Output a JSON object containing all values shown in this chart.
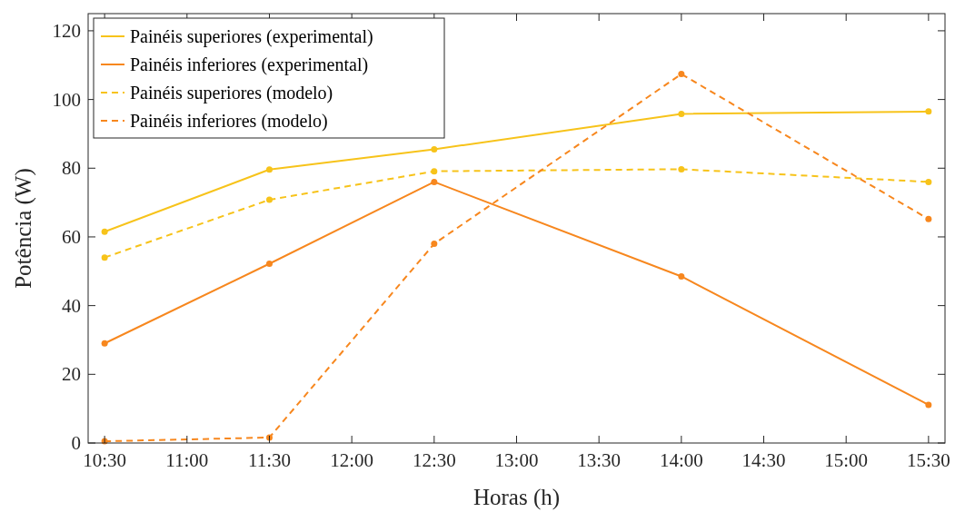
{
  "chart_data": {
    "type": "line",
    "xlabel": "Horas (h)",
    "ylabel": "Potência (W)",
    "x": [
      10.5,
      11.5,
      12.5,
      14,
      15.5
    ],
    "xlim": [
      10.4,
      15.6
    ],
    "xticks": [
      {
        "value": 10.5,
        "label": "10:30"
      },
      {
        "value": 11,
        "label": "11:00"
      },
      {
        "value": 11.5,
        "label": "11:30"
      },
      {
        "value": 12,
        "label": "12:00"
      },
      {
        "value": 12.5,
        "label": "12:30"
      },
      {
        "value": 13,
        "label": "13:00"
      },
      {
        "value": 13.5,
        "label": "13:30"
      },
      {
        "value": 14,
        "label": "14:00"
      },
      {
        "value": 14.5,
        "label": "14:30"
      },
      {
        "value": 15,
        "label": "15:00"
      },
      {
        "value": 15.5,
        "label": "15:30"
      }
    ],
    "ylim": [
      0,
      125
    ],
    "yticks": [
      0,
      20,
      40,
      60,
      80,
      100,
      120
    ],
    "grid": false,
    "legend": "top left",
    "marker": "circle",
    "series": [
      {
        "name": "Painéis superiores (experimental)",
        "color": "#f7c31a",
        "line_style": "solid",
        "values": [
          61.5,
          79.6,
          85.5,
          95.8,
          96.5
        ]
      },
      {
        "name": "Painéis inferiores (experimental)",
        "color": "#f7871e",
        "line_style": "solid",
        "values": [
          29,
          52.2,
          76,
          48.5,
          11.1
        ]
      },
      {
        "name": "Painéis superiores (modelo)",
        "color": "#f7c31a",
        "line_style": "dashed",
        "values": [
          54,
          70.8,
          79.1,
          79.7,
          76
        ]
      },
      {
        "name": "Painéis inferiores (modelo)",
        "color": "#f7871e",
        "line_style": "dashed",
        "values": [
          0.5,
          1.6,
          58,
          107.4,
          65.2
        ]
      }
    ]
  }
}
